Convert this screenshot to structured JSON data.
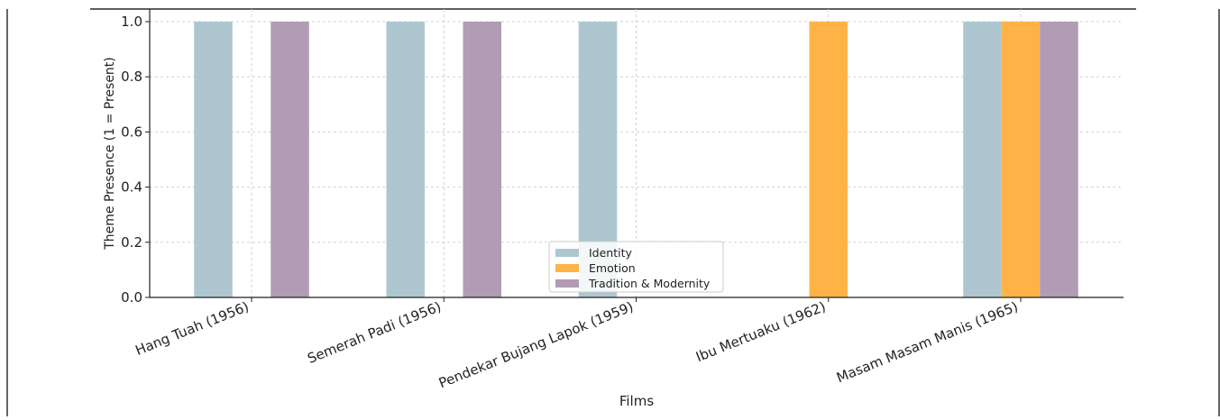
{
  "chart_data": {
    "type": "bar",
    "categories": [
      "Hang Tuah (1956)",
      "Semerah Padi (1956)",
      "Pendekar Bujang Lapok (1959)",
      "Ibu Mertuaku (1962)",
      "Masam Masam Manis (1965)"
    ],
    "series": [
      {
        "name": "Identity",
        "color": "#aec6cf",
        "values": [
          1,
          1,
          1,
          0,
          1
        ]
      },
      {
        "name": "Emotion",
        "color": "#ffb347",
        "values": [
          0,
          0,
          0,
          1,
          1
        ]
      },
      {
        "name": "Tradition & Modernity",
        "color": "#b19cb4",
        "values": [
          1,
          1,
          0,
          0,
          1
        ]
      }
    ],
    "xlabel": "Films",
    "ylabel": "Theme Presence (1 = Present)",
    "ylim": [
      0,
      1.0
    ],
    "yticks": [
      "0.0",
      "0.2",
      "0.4",
      "0.6",
      "0.8",
      "1.0"
    ],
    "grid": true,
    "legend": "lower-center"
  }
}
